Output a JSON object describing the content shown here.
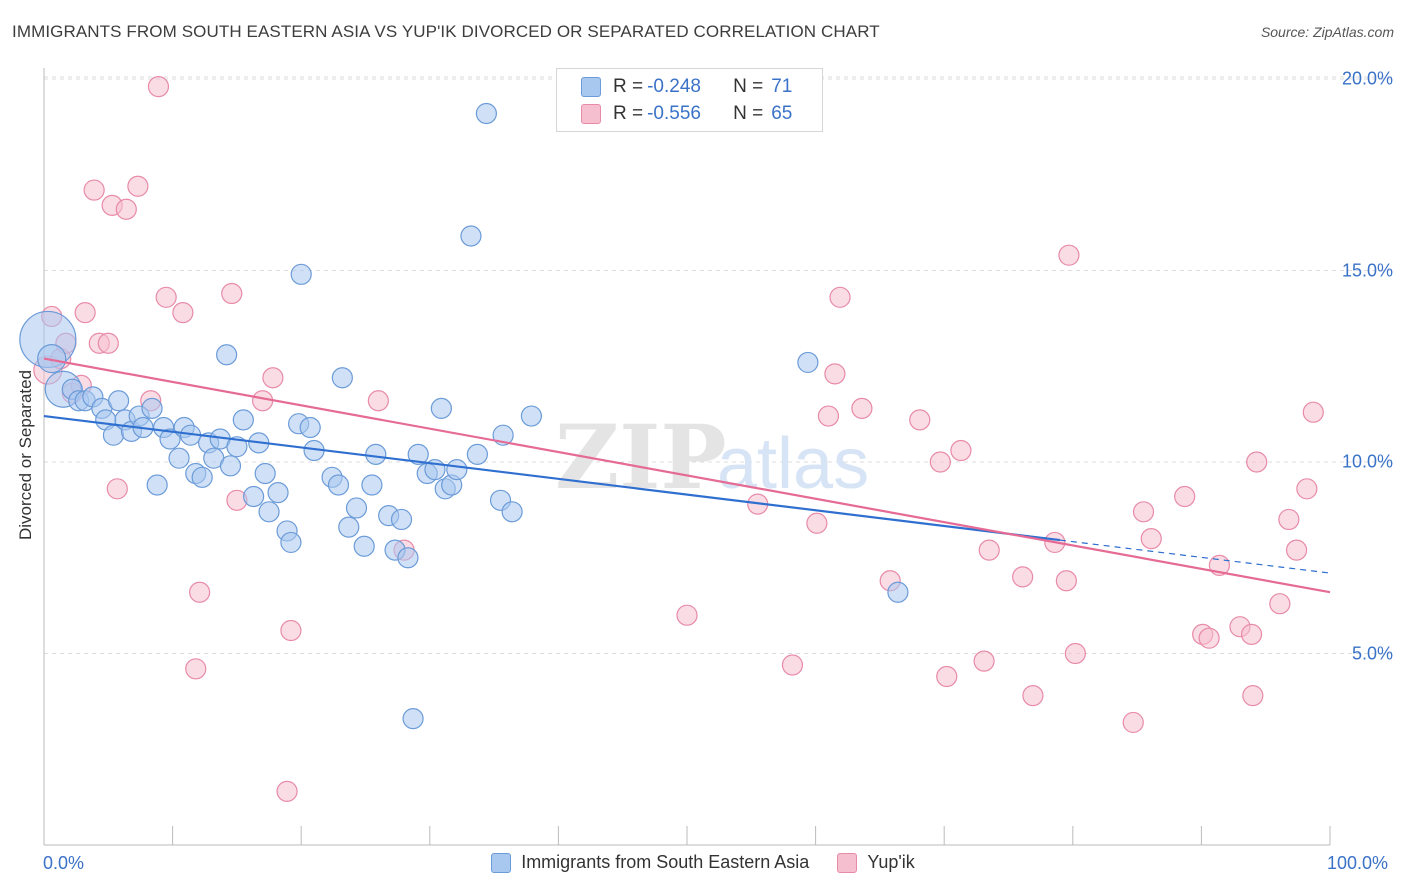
{
  "title": "IMMIGRANTS FROM SOUTH EASTERN ASIA VS YUP'IK DIVORCED OR SEPARATED CORRELATION CHART",
  "source": "Source: ZipAtlas.com",
  "watermark": {
    "zip": "ZIP",
    "atlas": "atlas"
  },
  "colors": {
    "blue_fill": "#a9c8f0",
    "blue_stroke": "#6b9bd8",
    "blue_line": "#2f6fd0",
    "pink_fill": "#f6bfd0",
    "pink_stroke": "#e88aa8",
    "pink_line": "#e56a94",
    "grid": "#dddddd",
    "tick_text": "#3a72c8"
  },
  "legend_top": {
    "rows": [
      {
        "series": "blue",
        "r_label": "R = ",
        "r_value": "-0.248",
        "n_label": "N = ",
        "n_value": "71"
      },
      {
        "series": "pink",
        "r_label": "R = ",
        "r_value": "-0.556",
        "n_label": "N = ",
        "n_value": "65"
      }
    ]
  },
  "legend_bottom": [
    "Immigrants from South Eastern Asia",
    "Yup'ik"
  ],
  "chart_data": {
    "type": "scatter",
    "title": "IMMIGRANTS FROM SOUTH EASTERN ASIA VS YUP'IK DIVORCED OR SEPARATED CORRELATION CHART",
    "xlabel": "",
    "ylabel": "Divorced or Separated",
    "xlim": [
      0,
      100
    ],
    "ylim": [
      0,
      20.5
    ],
    "x_tick_labels": [
      "0.0%",
      "100.0%"
    ],
    "y_ticks": [
      5,
      10,
      15,
      20
    ],
    "y_tick_labels": [
      "5.0%",
      "10.0%",
      "15.0%",
      "20.0%"
    ],
    "grid": true,
    "legend_position": "top-center",
    "series": [
      {
        "name": "Immigrants from South Eastern Asia",
        "color": "#a9c8f0",
        "trend": {
          "x": [
            0,
            100
          ],
          "y": [
            11.2,
            7.1
          ],
          "solid_until": 79
        },
        "points": [
          [
            0.3,
            13.2,
            28
          ],
          [
            0.6,
            12.7,
            14
          ],
          [
            1.5,
            11.9,
            18
          ],
          [
            2.2,
            11.9,
            10
          ],
          [
            2.7,
            11.6,
            10
          ],
          [
            3.2,
            11.6,
            10
          ],
          [
            3.8,
            11.7,
            10
          ],
          [
            4.5,
            11.4,
            10
          ],
          [
            4.8,
            11.1,
            10
          ],
          [
            5.4,
            10.7,
            10
          ],
          [
            5.8,
            11.6,
            10
          ],
          [
            6.3,
            11.1,
            10
          ],
          [
            6.8,
            10.8,
            10
          ],
          [
            7.4,
            11.2,
            10
          ],
          [
            7.7,
            10.9,
            10
          ],
          [
            8.4,
            11.4,
            10
          ],
          [
            8.8,
            9.4,
            10
          ],
          [
            9.3,
            10.9,
            10
          ],
          [
            9.8,
            10.6,
            10
          ],
          [
            10.5,
            10.1,
            10
          ],
          [
            10.9,
            10.9,
            10
          ],
          [
            11.4,
            10.7,
            10
          ],
          [
            11.8,
            9.7,
            10
          ],
          [
            12.3,
            9.6,
            10
          ],
          [
            12.8,
            10.5,
            10
          ],
          [
            13.2,
            10.1,
            10
          ],
          [
            13.7,
            10.6,
            10
          ],
          [
            14.2,
            12.8,
            10
          ],
          [
            14.5,
            9.9,
            10
          ],
          [
            15.0,
            10.4,
            10
          ],
          [
            15.5,
            11.1,
            10
          ],
          [
            16.3,
            9.1,
            10
          ],
          [
            16.7,
            10.5,
            10
          ],
          [
            17.2,
            9.7,
            10
          ],
          [
            17.5,
            8.7,
            10
          ],
          [
            18.2,
            9.2,
            10
          ],
          [
            18.9,
            8.2,
            10
          ],
          [
            19.2,
            7.9,
            10
          ],
          [
            19.8,
            11.0,
            10
          ],
          [
            20.0,
            14.9,
            10
          ],
          [
            20.7,
            10.9,
            10
          ],
          [
            21.0,
            10.3,
            10
          ],
          [
            22.4,
            9.6,
            10
          ],
          [
            22.9,
            9.4,
            10
          ],
          [
            23.2,
            12.2,
            10
          ],
          [
            23.7,
            8.3,
            10
          ],
          [
            24.3,
            8.8,
            10
          ],
          [
            24.9,
            7.8,
            10
          ],
          [
            25.5,
            9.4,
            10
          ],
          [
            25.8,
            10.2,
            10
          ],
          [
            26.8,
            8.6,
            10
          ],
          [
            27.3,
            7.7,
            10
          ],
          [
            27.8,
            8.5,
            10
          ],
          [
            28.3,
            7.5,
            10
          ],
          [
            28.7,
            3.3,
            10
          ],
          [
            29.1,
            10.2,
            10
          ],
          [
            29.8,
            9.7,
            10
          ],
          [
            30.4,
            9.8,
            10
          ],
          [
            30.9,
            11.4,
            10
          ],
          [
            31.2,
            9.3,
            10
          ],
          [
            31.7,
            9.4,
            10
          ],
          [
            32.1,
            9.8,
            10
          ],
          [
            33.2,
            15.9,
            10
          ],
          [
            33.7,
            10.2,
            10
          ],
          [
            34.4,
            19.1,
            10
          ],
          [
            35.7,
            10.7,
            10
          ],
          [
            35.5,
            9.0,
            10
          ],
          [
            36.4,
            8.7,
            10
          ],
          [
            37.9,
            11.2,
            10
          ],
          [
            59.4,
            12.6,
            10
          ],
          [
            66.4,
            6.6,
            10
          ]
        ]
      },
      {
        "name": "Yup'ik",
        "color": "#f6bfd0",
        "trend": {
          "x": [
            0,
            100
          ],
          "y": [
            12.7,
            6.6
          ]
        },
        "points": [
          [
            0.3,
            12.4,
            14
          ],
          [
            0.6,
            13.8,
            10
          ],
          [
            1.3,
            12.7,
            10
          ],
          [
            1.7,
            13.1,
            10
          ],
          [
            2.2,
            11.8,
            10
          ],
          [
            2.9,
            12.0,
            10
          ],
          [
            3.2,
            13.9,
            10
          ],
          [
            3.9,
            17.1,
            10
          ],
          [
            4.3,
            13.1,
            10
          ],
          [
            5.0,
            13.1,
            10
          ],
          [
            5.3,
            16.7,
            10
          ],
          [
            5.7,
            9.3,
            10
          ],
          [
            6.4,
            16.6,
            10
          ],
          [
            7.3,
            17.2,
            10
          ],
          [
            8.3,
            11.6,
            10
          ],
          [
            8.9,
            19.8,
            10
          ],
          [
            9.5,
            14.3,
            10
          ],
          [
            10.8,
            13.9,
            10
          ],
          [
            11.8,
            4.6,
            10
          ],
          [
            12.1,
            6.6,
            10
          ],
          [
            14.6,
            14.4,
            10
          ],
          [
            15.0,
            9.0,
            10
          ],
          [
            17.0,
            11.6,
            10
          ],
          [
            17.8,
            12.2,
            10
          ],
          [
            18.9,
            1.4,
            10
          ],
          [
            19.2,
            5.6,
            10
          ],
          [
            26.0,
            11.6,
            10
          ],
          [
            28.0,
            7.7,
            10
          ],
          [
            50.0,
            6.0,
            10
          ],
          [
            55.5,
            8.9,
            10
          ],
          [
            58.2,
            4.7,
            10
          ],
          [
            60.1,
            8.4,
            10
          ],
          [
            61.0,
            11.2,
            10
          ],
          [
            61.5,
            12.3,
            10
          ],
          [
            61.9,
            14.3,
            10
          ],
          [
            63.6,
            11.4,
            10
          ],
          [
            65.8,
            6.9,
            10
          ],
          [
            68.1,
            11.1,
            10
          ],
          [
            69.7,
            10.0,
            10
          ],
          [
            70.2,
            4.4,
            10
          ],
          [
            71.3,
            10.3,
            10
          ],
          [
            73.1,
            4.8,
            10
          ],
          [
            73.5,
            7.7,
            10
          ],
          [
            76.1,
            7.0,
            10
          ],
          [
            76.9,
            3.9,
            10
          ],
          [
            78.6,
            7.9,
            10
          ],
          [
            79.5,
            6.9,
            10
          ],
          [
            79.7,
            15.4,
            10
          ],
          [
            80.2,
            5.0,
            10
          ],
          [
            84.7,
            3.2,
            10
          ],
          [
            85.5,
            8.7,
            10
          ],
          [
            86.1,
            8.0,
            10
          ],
          [
            88.7,
            9.1,
            10
          ],
          [
            90.1,
            5.5,
            10
          ],
          [
            90.6,
            5.4,
            10
          ],
          [
            91.4,
            7.3,
            10
          ],
          [
            93.0,
            5.7,
            10
          ],
          [
            93.9,
            5.5,
            10
          ],
          [
            94.0,
            3.9,
            10
          ],
          [
            94.3,
            10.0,
            10
          ],
          [
            96.1,
            6.3,
            10
          ],
          [
            96.8,
            8.5,
            10
          ],
          [
            97.4,
            7.7,
            10
          ],
          [
            98.2,
            9.3,
            10
          ],
          [
            98.7,
            11.3,
            10
          ]
        ]
      }
    ]
  }
}
